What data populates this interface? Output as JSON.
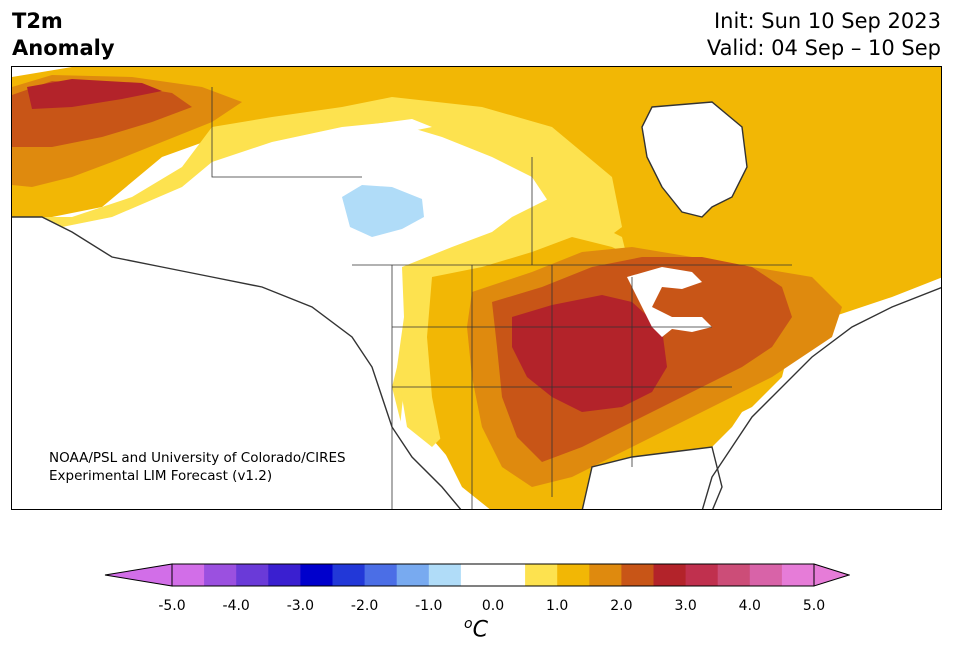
{
  "title": {
    "line1": "T2m",
    "line2": "Anomaly"
  },
  "info": {
    "init": "Init: Sun 10 Sep 2023",
    "valid": "Valid: 04 Sep – 10 Sep"
  },
  "credit": {
    "line1": "NOAA/PSL and University of Colorado/CIRES",
    "line2": "Experimental LIM Forecast (v1.2)"
  },
  "colorbar": {
    "ticks": [
      "-5.0",
      "-4.0",
      "-3.0",
      "-2.0",
      "-1.0",
      "0.0",
      "1.0",
      "2.0",
      "3.0",
      "4.0",
      "5.0"
    ],
    "unit_symbol": "o",
    "unit_letter": "C",
    "colors": [
      "#d26ee8",
      "#9b50e0",
      "#6a3ad8",
      "#3a1fd0",
      "#0000cc",
      "#2238d8",
      "#4b6ee6",
      "#78aaf0",
      "#b0dcf8",
      "#ffffff",
      "#ffffff",
      "#fde24f",
      "#f2b705",
      "#df8a0e",
      "#c85517",
      "#b3232a",
      "#c0304e",
      "#cc4d78",
      "#d863a8",
      "#e67cd8"
    ],
    "under_color": "#d26ee8",
    "over_color": "#e67cd8"
  },
  "map_fills": {
    "land": "#ffffff",
    "level_1": "#fde24f",
    "level_2": "#f2b705",
    "level_3": "#df8a0e",
    "level_4": "#c85517",
    "level_5": "#b3232a",
    "cold_1": "#b0dcf8",
    "water": "#ffffff",
    "boundary": "#333333"
  }
}
